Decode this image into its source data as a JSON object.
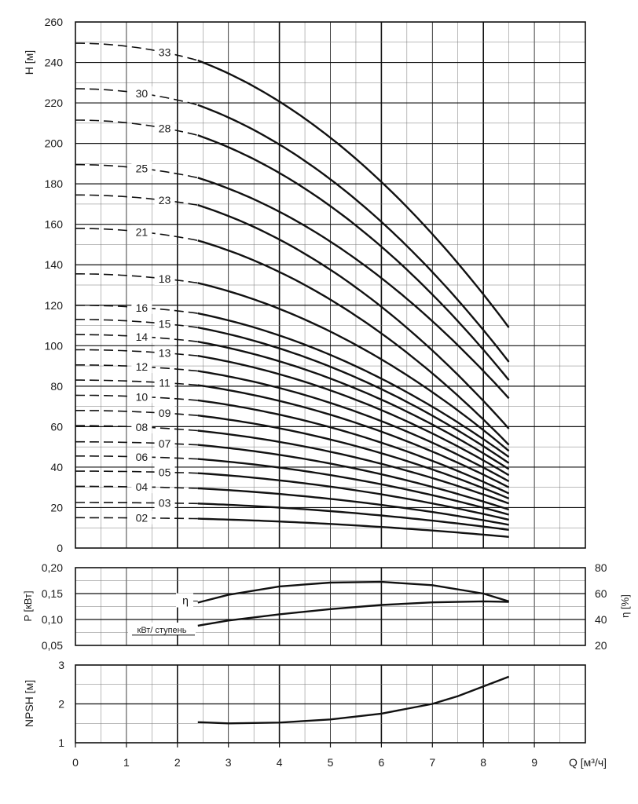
{
  "chart_data": [
    {
      "type": "line",
      "panel": "head",
      "ylabel": "H [м]",
      "xlim": [
        0,
        10
      ],
      "ylim": [
        0,
        260
      ],
      "xticks": [
        "0",
        "1",
        "2",
        "3",
        "4",
        "5",
        "6",
        "7",
        "8",
        "9"
      ],
      "yticks": [
        "0",
        "20",
        "40",
        "60",
        "80",
        "100",
        "120",
        "140",
        "160",
        "180",
        "200",
        "220",
        "240",
        "260"
      ],
      "grid": true,
      "q_start": 2.4,
      "q_end": 8.5,
      "series": [
        {
          "name": "33",
          "h0": 249.5,
          "h_start": 241,
          "h_end": 109
        },
        {
          "name": "30",
          "h0": 227,
          "h_start": 219,
          "h_end": 92
        },
        {
          "name": "28",
          "h0": 211.5,
          "h_start": 204,
          "h_end": 83
        },
        {
          "name": "25",
          "h0": 189.5,
          "h_start": 183,
          "h_end": 74
        },
        {
          "name": "23",
          "h0": 174.5,
          "h_start": 169.5,
          "h_end": 59
        },
        {
          "name": "21",
          "h0": 158,
          "h_start": 152,
          "h_end": 51
        },
        {
          "name": "18",
          "h0": 135.5,
          "h_start": 131,
          "h_end": 48
        },
        {
          "name": "16",
          "h0": 120,
          "h_start": 116,
          "h_end": 45
        },
        {
          "name": "15",
          "h0": 113,
          "h_start": 109,
          "h_end": 42
        },
        {
          "name": "14",
          "h0": 105.5,
          "h_start": 102,
          "h_end": 39
        },
        {
          "name": "13",
          "h0": 98,
          "h_start": 95,
          "h_end": 36
        },
        {
          "name": "12",
          "h0": 90.5,
          "h_start": 87.5,
          "h_end": 33
        },
        {
          "name": "11",
          "h0": 83,
          "h_start": 80.5,
          "h_end": 30
        },
        {
          "name": "10",
          "h0": 75.5,
          "h_start": 73,
          "h_end": 27
        },
        {
          "name": "09",
          "h0": 68,
          "h_start": 65.5,
          "h_end": 24.5
        },
        {
          "name": "08",
          "h0": 60.5,
          "h_start": 58,
          "h_end": 22
        },
        {
          "name": "07",
          "h0": 52.5,
          "h_start": 51,
          "h_end": 19
        },
        {
          "name": "06",
          "h0": 45.5,
          "h_start": 44,
          "h_end": 16.5
        },
        {
          "name": "05",
          "h0": 38,
          "h_start": 37,
          "h_end": 14
        },
        {
          "name": "04",
          "h0": 30.5,
          "h_start": 29.5,
          "h_end": 11.5
        },
        {
          "name": "03",
          "h0": 22.5,
          "h_start": 22,
          "h_end": 9
        },
        {
          "name": "02",
          "h0": 15,
          "h_start": 14.5,
          "h_end": 5.5
        }
      ]
    },
    {
      "type": "line",
      "panel": "power-efficiency",
      "ylabel_left": "P [кВт]",
      "ylabel_left_sub": "P",
      "ylabel_right": "η [%]",
      "xlim": [
        0,
        10
      ],
      "ylim_left": [
        0.05,
        0.2
      ],
      "ylim_right": [
        20,
        80
      ],
      "yticks_left": [
        "0,05",
        "0,10",
        "0,15",
        "0,20"
      ],
      "yticks_right": [
        "20",
        "40",
        "60",
        "80"
      ],
      "grid": true,
      "series": [
        {
          "name": "η",
          "axis": "right",
          "x": [
            2.4,
            3,
            4,
            5,
            6,
            7,
            8,
            8.5
          ],
          "y": [
            53,
            59,
            65.5,
            68.5,
            69,
            66.5,
            60,
            54
          ]
        },
        {
          "name": "кВт/ ступень",
          "axis": "left",
          "x": [
            2.4,
            3,
            4,
            5,
            6,
            7,
            8,
            8.5
          ],
          "y": [
            0.088,
            0.098,
            0.11,
            0.12,
            0.128,
            0.133,
            0.135,
            0.134
          ]
        }
      ]
    },
    {
      "type": "line",
      "panel": "npsh",
      "ylabel": "NPSH [м]",
      "xlabel": "Q [м³/ч]",
      "xlim": [
        0,
        10
      ],
      "ylim": [
        1,
        3
      ],
      "yticks": [
        "1",
        "2",
        "3"
      ],
      "xticks": [
        "0",
        "1",
        "2",
        "3",
        "4",
        "5",
        "6",
        "7",
        "8",
        "9"
      ],
      "grid": true,
      "series": [
        {
          "name": "NPSH",
          "x": [
            2.4,
            3,
            4,
            5,
            6,
            7,
            7.5,
            8,
            8.5
          ],
          "y": [
            1.53,
            1.5,
            1.52,
            1.6,
            1.75,
            2.0,
            2.2,
            2.45,
            2.7
          ]
        }
      ]
    }
  ]
}
